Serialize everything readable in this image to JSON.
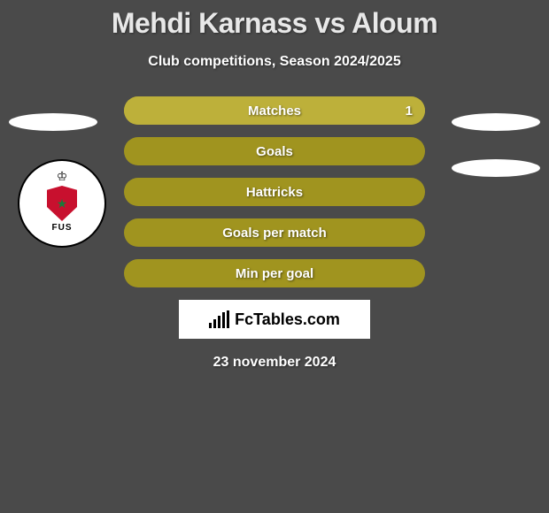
{
  "title": "Mehdi Karnass vs Aloum",
  "subtitle": "Club competitions, Season 2024/2025",
  "date": "23 november 2024",
  "brand": "FcTables.com",
  "badge": {
    "fus_text": "FUS"
  },
  "colors": {
    "background": "#4a4a4a",
    "pill_base": "#a0941f",
    "pill_fill": "#bdb03a",
    "text_light": "#ffffff",
    "title_color": "#e8e8e8",
    "brand_bg": "#ffffff",
    "badge_red": "#c8102e",
    "badge_green": "#1a7a3a"
  },
  "stats": [
    {
      "label": "Matches",
      "value_right": "1",
      "fill_pct": 100,
      "has_fill": true
    },
    {
      "label": "Goals",
      "value_right": "",
      "fill_pct": 0,
      "has_fill": false
    },
    {
      "label": "Hattricks",
      "value_right": "",
      "fill_pct": 0,
      "has_fill": false
    },
    {
      "label": "Goals per match",
      "value_right": "",
      "fill_pct": 0,
      "has_fill": false
    },
    {
      "label": "Min per goal",
      "value_right": "",
      "fill_pct": 0,
      "has_fill": false
    }
  ],
  "brand_bars": [
    6,
    10,
    14,
    18,
    20
  ]
}
